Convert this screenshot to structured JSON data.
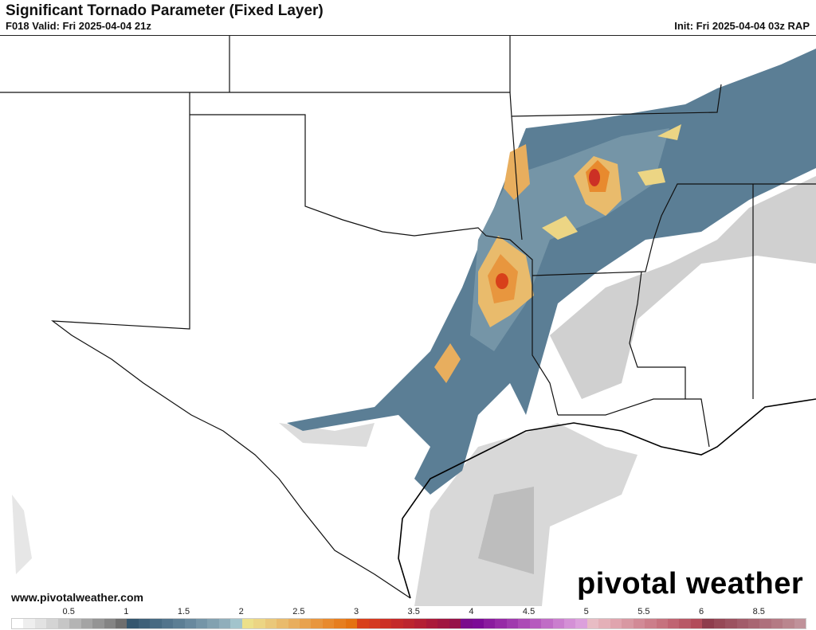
{
  "header": {
    "title": "Significant Tornado Parameter (Fixed Layer)",
    "valid": "F018 Valid: Fri 2025-04-04 21z",
    "init": "Init: Fri 2025-04-04 03z RAP"
  },
  "footer": {
    "url": "www.pivotalweather.com",
    "logo_text": "pivotal weather"
  },
  "colorbar": {
    "ticks": [
      "0.5",
      "1",
      "1.5",
      "2",
      "2.5",
      "3",
      "3.5",
      "4",
      "4.5",
      "5",
      "5.5",
      "6",
      "8.5"
    ],
    "colors": [
      "#ffffff",
      "#eeeeee",
      "#e2e2e2",
      "#d4d4d4",
      "#c6c6c6",
      "#b4b4b4",
      "#a4a4a4",
      "#949494",
      "#848484",
      "#6e6e6e",
      "#34566e",
      "#3e6078",
      "#476a82",
      "#52748c",
      "#5c7e94",
      "#68899e",
      "#7595a7",
      "#82a1b0",
      "#90aebb",
      "#a2c4cc",
      "#ece08a",
      "#ecd584",
      "#eac87a",
      "#e9bb6c",
      "#e8ae5e",
      "#e8a24e",
      "#e8963e",
      "#e88a2e",
      "#e67e20",
      "#e47212",
      "#d8401a",
      "#d43a20",
      "#cc3025",
      "#c42a2a",
      "#bc262e",
      "#b42034",
      "#aa1a3a",
      "#a01640",
      "#961248",
      "#7a0c8c",
      "#7c0c96",
      "#8a1c9e",
      "#962aa6",
      "#a03aae",
      "#ac4ab6",
      "#b65abe",
      "#c06cc6",
      "#ca7ece",
      "#d490d6",
      "#dca0dc",
      "#e8bcc4",
      "#e4b0b8",
      "#e0a4ae",
      "#d898a2",
      "#d28a96",
      "#cc7e8a",
      "#c6727e",
      "#c06472",
      "#b85866",
      "#b24c5a",
      "#8e3c4c",
      "#964856",
      "#9c5260",
      "#a25c6a",
      "#a86672",
      "#ae707c",
      "#b47a84",
      "#ba868e",
      "#c0929a"
    ]
  }
}
